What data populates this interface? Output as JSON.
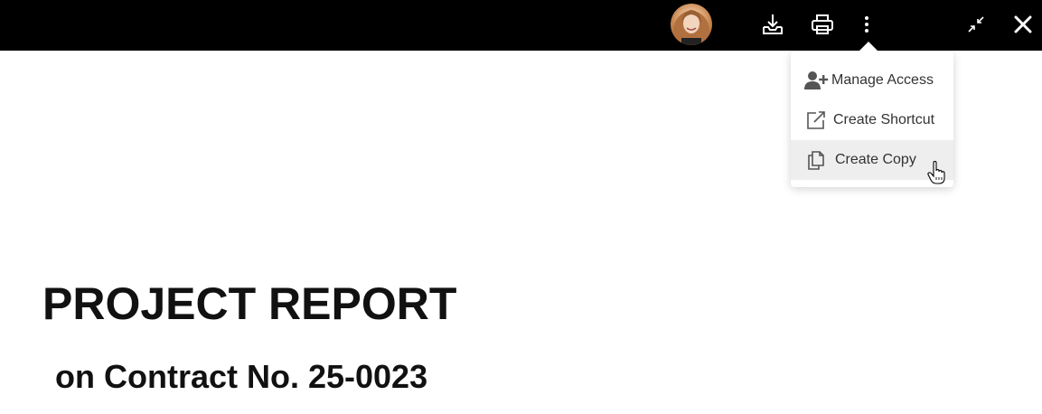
{
  "toolbar": {
    "avatar_icon": "user-avatar",
    "download_icon": "download-icon",
    "print_icon": "printer-icon",
    "more_icon": "more-vertical-icon",
    "minimize_icon": "collapse-icon",
    "close_icon": "close-icon",
    "background": "#000000"
  },
  "menu": {
    "items": [
      {
        "label": "Manage Access",
        "icon": "add-user-icon"
      },
      {
        "label": "Create Shortcut",
        "icon": "external-link-icon"
      },
      {
        "label": "Create Copy",
        "icon": "copy-icon",
        "hovered": true
      }
    ]
  },
  "document": {
    "title": "PROJECT REPORT",
    "subtitle": "on Contract No. 25-0023"
  }
}
